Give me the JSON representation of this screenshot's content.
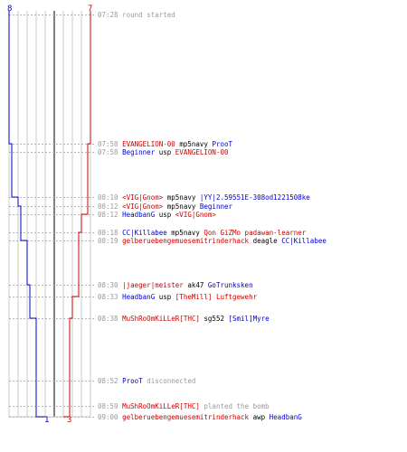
{
  "scoreboard": {
    "ct_start": "8",
    "t_start": "7",
    "ct_end": "1",
    "t_end": "3",
    "ct_color": "#0000cc",
    "t_color": "#cc0000"
  },
  "events": [
    {
      "time": "07:28",
      "parts": [
        {
          "text": "round started",
          "style": "s"
        }
      ]
    },
    {
      "time": "07:58",
      "parts": [
        {
          "text": "EVANGELION-00",
          "style": "r"
        },
        {
          "text": "mp5navy",
          "style": "x"
        },
        {
          "text": "ProoT",
          "style": "b"
        }
      ]
    },
    {
      "time": "07:58",
      "parts": [
        {
          "text": "Beginner",
          "style": "b"
        },
        {
          "text": "usp",
          "style": "x"
        },
        {
          "text": "EVANGELION-00",
          "style": "r"
        }
      ]
    },
    {
      "time": "08:10",
      "parts": [
        {
          "text": "<VIG|Gnom>",
          "style": "r"
        },
        {
          "text": "mp5navy",
          "style": "x"
        },
        {
          "text": "|YY|2.59551E-308od1221508ke",
          "style": "b"
        }
      ]
    },
    {
      "time": "08:12",
      "parts": [
        {
          "text": "<VIG|Gnom>",
          "style": "r"
        },
        {
          "text": "mp5navy",
          "style": "x"
        },
        {
          "text": "Beginner",
          "style": "b"
        }
      ]
    },
    {
      "time": "08:12",
      "parts": [
        {
          "text": "HeadbanG",
          "style": "b"
        },
        {
          "text": "usp",
          "style": "x"
        },
        {
          "text": "<VIG|Gnom>",
          "style": "r"
        }
      ]
    },
    {
      "time": "08:18",
      "parts": [
        {
          "text": "CC|Killabee",
          "style": "b"
        },
        {
          "text": "mp5navy",
          "style": "x"
        },
        {
          "text": "Qon GiZMo padawan-learner",
          "style": "r"
        }
      ]
    },
    {
      "time": "08:19",
      "parts": [
        {
          "text": "gelberuebengemuesemitrinderhack",
          "style": "r"
        },
        {
          "text": "deagle",
          "style": "x"
        },
        {
          "text": "CC|Killabee",
          "style": "b"
        }
      ]
    },
    {
      "time": "08:30",
      "parts": [
        {
          "text": "|jaeger|meister",
          "style": "r"
        },
        {
          "text": "ak47",
          "style": "x"
        },
        {
          "text": "GoTrunksken",
          "style": "b"
        }
      ]
    },
    {
      "time": "08:33",
      "parts": [
        {
          "text": "HeadbanG",
          "style": "b"
        },
        {
          "text": "usp",
          "style": "x"
        },
        {
          "text": "[TheMill] Luftgewehr",
          "style": "r"
        }
      ]
    },
    {
      "time": "08:38",
      "parts": [
        {
          "text": "MuShRoOmKiLLeR[THC]",
          "style": "r"
        },
        {
          "text": "sg552",
          "style": "x"
        },
        {
          "text": "[Smil]Myre",
          "style": "b"
        }
      ]
    },
    {
      "time": "08:52",
      "parts": [
        {
          "text": "ProoT",
          "style": "b"
        },
        {
          "text": "disconnected",
          "style": "s"
        }
      ]
    },
    {
      "time": "08:59",
      "parts": [
        {
          "text": "MuShRoOmKiLLeR[THC]",
          "style": "r"
        },
        {
          "text": "planted the bomb",
          "style": "s"
        }
      ]
    },
    {
      "time": "09:00",
      "parts": [
        {
          "text": "gelberuebengemuesemitrinderhack",
          "style": "r"
        },
        {
          "text": "awp",
          "style": "x"
        },
        {
          "text": "HeadbanG",
          "style": "b"
        }
      ]
    }
  ]
}
